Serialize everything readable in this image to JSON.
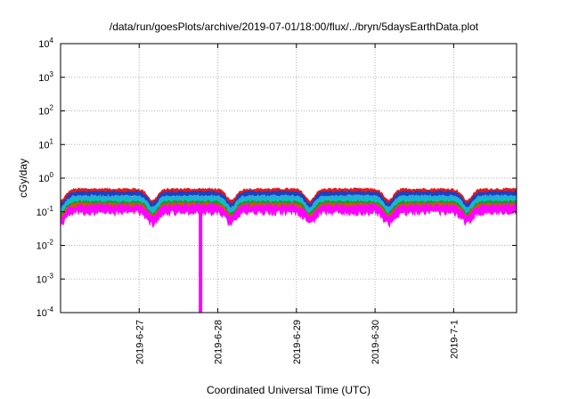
{
  "chart_data": {
    "type": "line",
    "title": "/data/run/goesPlots/archive/2019-07-01/18:00/flux/../bryn/5daysEarthData.plot",
    "xlabel": "Coordinated Universal Time (UTC)",
    "ylabel": "cGy/day",
    "yscale": "log",
    "ylim": [
      0.0001,
      10000
    ],
    "xlim": [
      0,
      5.8
    ],
    "grid": true,
    "legend": "none",
    "y_ticks": [
      {
        "base": "10",
        "exp": "-4",
        "value": 0.0001
      },
      {
        "base": "10",
        "exp": "-3",
        "value": 0.001
      },
      {
        "base": "10",
        "exp": "-2",
        "value": 0.01
      },
      {
        "base": "10",
        "exp": "-1",
        "value": 0.1
      },
      {
        "base": "10",
        "exp": "0",
        "value": 1
      },
      {
        "base": "10",
        "exp": "1",
        "value": 10
      },
      {
        "base": "10",
        "exp": "2",
        "value": 100
      },
      {
        "base": "10",
        "exp": "3",
        "value": 1000
      },
      {
        "base": "10",
        "exp": "4",
        "value": 10000
      }
    ],
    "x_ticks": [
      {
        "label": "2019-6-27",
        "value": 1
      },
      {
        "label": "2019-6-28",
        "value": 2
      },
      {
        "label": "2019-6-29",
        "value": 3
      },
      {
        "label": "2019-6-30",
        "value": 4
      },
      {
        "label": "2019-7-1",
        "value": 5
      }
    ],
    "dips": [
      0.0,
      1.17,
      2.17,
      3.17,
      4.17,
      5.17
    ],
    "spike": {
      "x": 1.78,
      "y": 0.0001
    },
    "series": [
      {
        "color": "#e41a1c",
        "level": 0.4
      },
      {
        "color": "#1f3fbf",
        "level": 0.33
      },
      {
        "color": "#29a9e0",
        "level": 0.25
      },
      {
        "color": "#00c8b4",
        "level": 0.2
      },
      {
        "color": "#2e8b3a",
        "level": 0.17
      },
      {
        "color": "#c06000",
        "level": 0.15
      },
      {
        "color": "#ff00ff",
        "level": 0.12
      }
    ]
  }
}
